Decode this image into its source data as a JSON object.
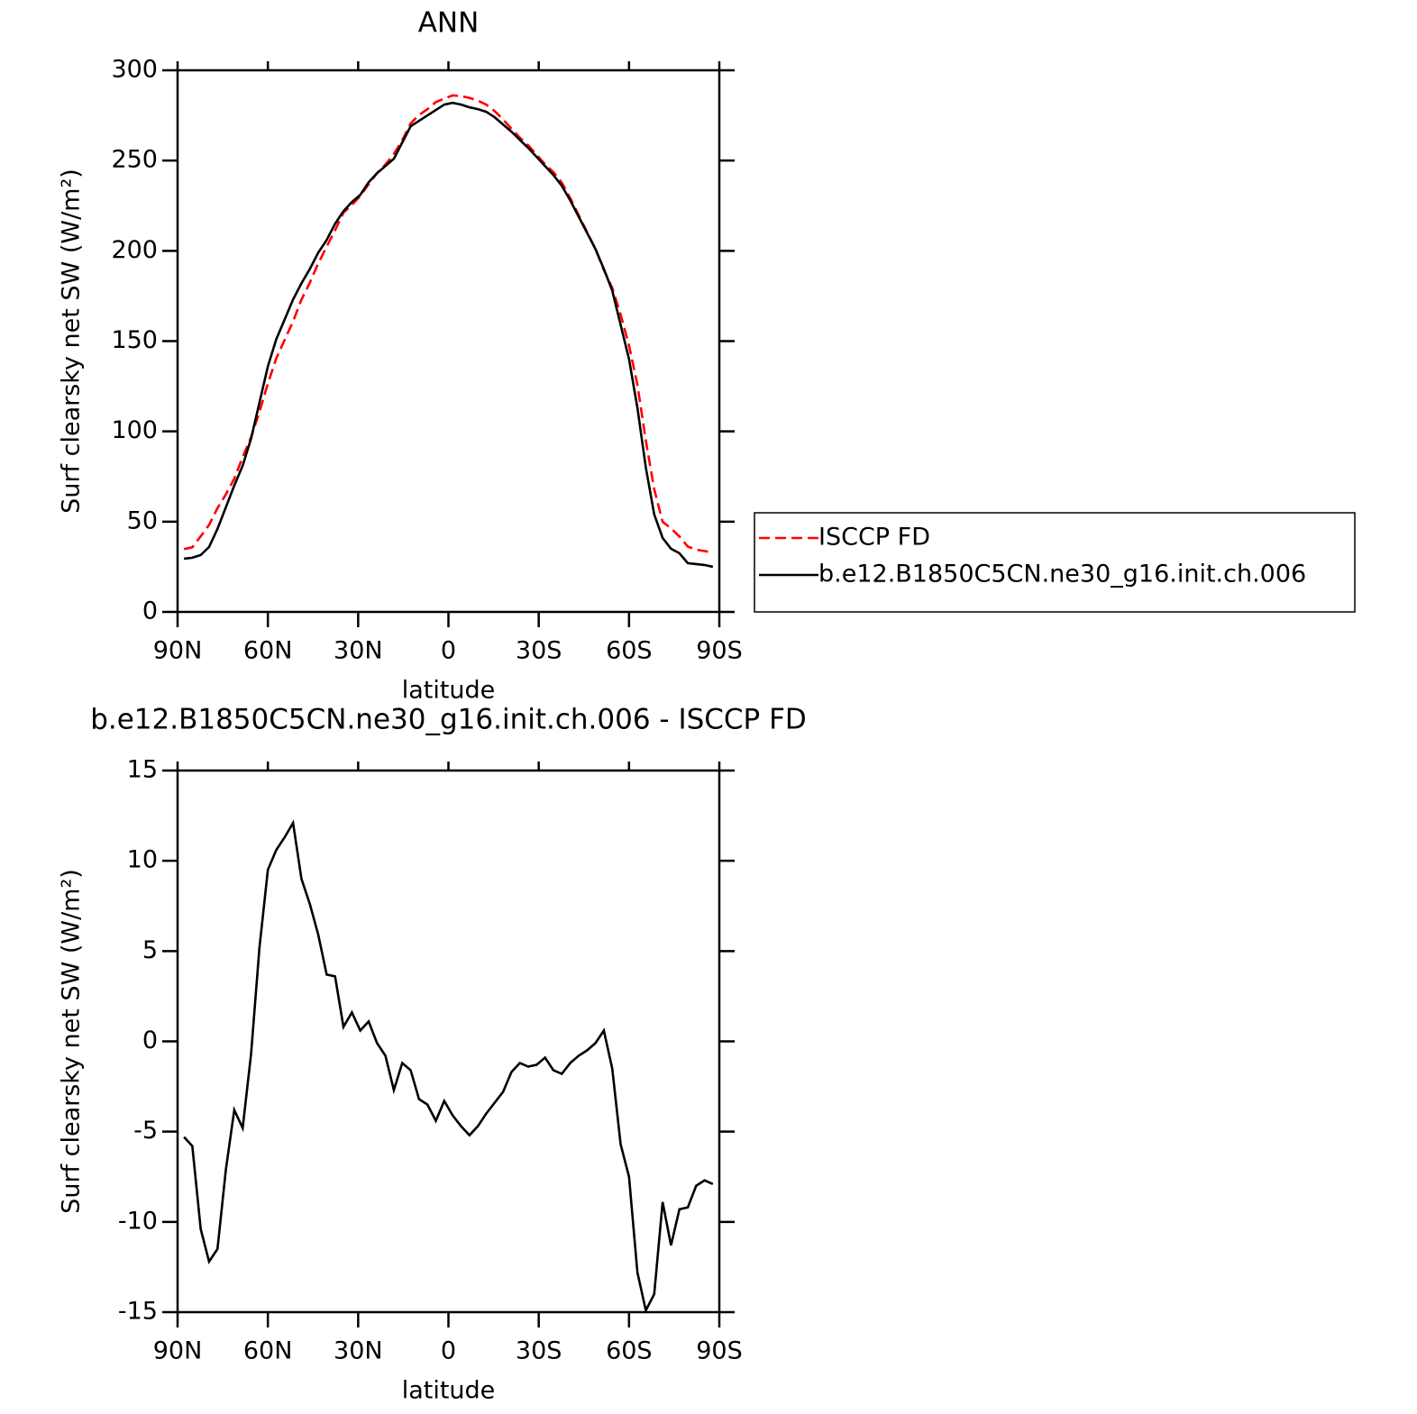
{
  "chart_data": [
    {
      "type": "line",
      "title": "ANN",
      "xlabel": "latitude",
      "ylabel": "Surf clearsky net SW (W/m²)",
      "x": [
        87.86,
        85.1,
        82.31,
        79.53,
        76.74,
        73.95,
        71.16,
        68.37,
        65.58,
        62.79,
        60.0,
        57.21,
        54.42,
        51.63,
        48.84,
        46.04,
        43.25,
        40.46,
        37.67,
        34.88,
        32.09,
        29.3,
        26.51,
        23.72,
        20.93,
        18.14,
        15.35,
        12.56,
        9.77,
        6.98,
        4.19,
        1.4,
        -1.4,
        -4.19,
        -6.98,
        -9.77,
        -12.56,
        -15.35,
        -18.14,
        -20.93,
        -23.72,
        -26.51,
        -29.3,
        -32.09,
        -34.88,
        -37.67,
        -40.46,
        -43.25,
        -46.04,
        -48.84,
        -51.63,
        -54.42,
        -57.21,
        -60.0,
        -62.79,
        -65.58,
        -68.37,
        -71.16,
        -73.95,
        -76.74,
        -79.53,
        -82.31,
        -85.1,
        -87.86
      ],
      "series": [
        {
          "name": "ISCCP FD",
          "color": "#ff0000",
          "dash": "dashed",
          "values": [
            34.8,
            35.8,
            41.9,
            48.2,
            57.5,
            65.1,
            73.8,
            85.8,
            96.7,
            110.8,
            126.5,
            140.4,
            150.7,
            160.9,
            173,
            182.4,
            193.1,
            202.3,
            211.4,
            221.2,
            225.4,
            230.4,
            236.9,
            243.1,
            247.8,
            253.7,
            261.2,
            270.6,
            275.2,
            278.5,
            282.4,
            284.3,
            286.1,
            285.7,
            284.7,
            283.2,
            281,
            277.4,
            272.8,
            267.7,
            262.7,
            258.4,
            253.3,
            247.9,
            243.6,
            237.8,
            229.2,
            219.8,
            210.5,
            201.1,
            189.4,
            179.5,
            164.7,
            147.5,
            125.8,
            94.9,
            68,
            49.9,
            46.3,
            41.8,
            36.2,
            34.5,
            33.7,
            32.9
          ]
        },
        {
          "name": "b.e12.B1850C5CN.ne30_g16.init.ch.006",
          "color": "#000000",
          "dash": "solid",
          "values": [
            29.5,
            30,
            31.5,
            36,
            46,
            58,
            70,
            81,
            96,
            116,
            136,
            151,
            162,
            173,
            182,
            190,
            199,
            206,
            215,
            222,
            227,
            231,
            238,
            243,
            247,
            251,
            260,
            269,
            272,
            275,
            278,
            281,
            282,
            281,
            279.5,
            278.5,
            277,
            274,
            270,
            266,
            261.5,
            257,
            252,
            247,
            242,
            236,
            228,
            219,
            210,
            201,
            190,
            178,
            159,
            140,
            113,
            80,
            54,
            41,
            35,
            32.5,
            27,
            26.5,
            26,
            25
          ]
        }
      ],
      "xlim": [
        90,
        -90
      ],
      "xticks": [
        {
          "value": 90,
          "label": "90N"
        },
        {
          "value": 60,
          "label": "60N"
        },
        {
          "value": 30,
          "label": "30N"
        },
        0,
        {
          "value": -30,
          "label": "30S"
        },
        {
          "value": -60,
          "label": "60S"
        },
        {
          "value": -90,
          "label": "90S"
        }
      ],
      "ylim": [
        0,
        300
      ],
      "yticks": [
        0,
        50,
        100,
        150,
        200,
        250,
        300
      ],
      "legend": "right"
    },
    {
      "type": "line",
      "title": "b.e12.B1850C5CN.ne30_g16.init.ch.006 - ISCCP FD",
      "xlabel": "latitude",
      "ylabel": "Surf clearsky net SW (W/m²)",
      "x": [
        87.86,
        85.1,
        82.31,
        79.53,
        76.74,
        73.95,
        71.16,
        68.37,
        65.58,
        62.79,
        60.0,
        57.21,
        54.42,
        51.63,
        48.84,
        46.04,
        43.25,
        40.46,
        37.67,
        34.88,
        32.09,
        29.3,
        26.51,
        23.72,
        20.93,
        18.14,
        15.35,
        12.56,
        9.77,
        6.98,
        4.19,
        1.4,
        -1.4,
        -4.19,
        -6.98,
        -9.77,
        -12.56,
        -15.35,
        -18.14,
        -20.93,
        -23.72,
        -26.51,
        -29.3,
        -32.09,
        -34.88,
        -37.67,
        -40.46,
        -43.25,
        -46.04,
        -48.84,
        -51.63,
        -54.42,
        -57.21,
        -60.0,
        -62.79,
        -65.58,
        -68.37,
        -71.16,
        -73.95,
        -76.74,
        -79.53,
        -82.31,
        -85.1,
        -87.86
      ],
      "series": [
        {
          "color": "#000000",
          "dash": "solid",
          "values": [
            -5.3,
            -5.8,
            -10.4,
            -12.2,
            -11.5,
            -7.1,
            -3.8,
            -4.8,
            -0.7,
            5.2,
            9.5,
            10.6,
            11.3,
            12.1,
            9.0,
            7.6,
            5.9,
            3.7,
            3.6,
            0.8,
            1.6,
            0.6,
            1.1,
            -0.1,
            -0.8,
            -2.7,
            -1.2,
            -1.6,
            -3.2,
            -3.5,
            -4.4,
            -3.3,
            -4.1,
            -4.7,
            -5.2,
            -4.7,
            -4.0,
            -3.4,
            -2.8,
            -1.7,
            -1.2,
            -1.4,
            -1.3,
            -0.9,
            -1.6,
            -1.8,
            -1.2,
            -0.8,
            -0.5,
            -0.1,
            0.6,
            -1.5,
            -5.7,
            -7.5,
            -12.8,
            -14.9,
            -14.0,
            -8.9,
            -11.3,
            -9.3,
            -9.2,
            -8.0,
            -7.7,
            -7.9
          ]
        }
      ],
      "xlim": [
        90,
        -90
      ],
      "xticks": [
        {
          "value": 90,
          "label": "90N"
        },
        {
          "value": 60,
          "label": "60N"
        },
        {
          "value": 30,
          "label": "30N"
        },
        0,
        {
          "value": -30,
          "label": "30S"
        },
        {
          "value": -60,
          "label": "60S"
        },
        {
          "value": -90,
          "label": "90S"
        }
      ],
      "ylim": [
        -15,
        15
      ],
      "yticks": [
        -15,
        -10,
        -5,
        0,
        5,
        10,
        15
      ]
    }
  ]
}
